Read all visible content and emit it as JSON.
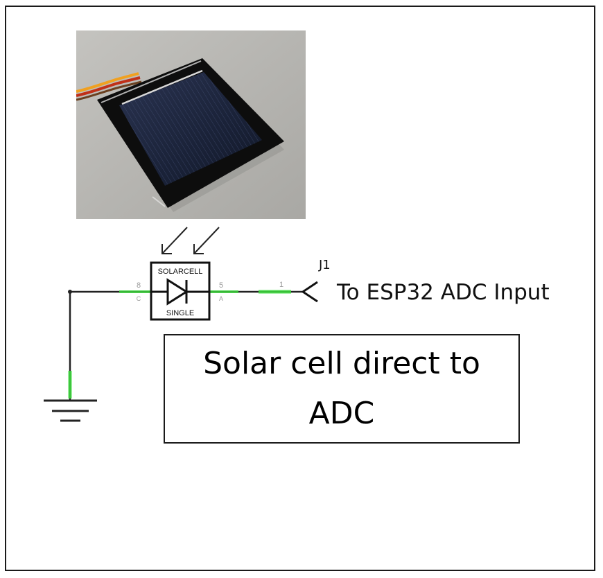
{
  "component": {
    "ref_label": "SOLARCELL",
    "value_label": "SINGLE",
    "pin_left_number": "8",
    "pin_left_name": "C",
    "pin_right_number": "5",
    "pin_right_name": "A"
  },
  "connector": {
    "ref_label": "J1",
    "pin_number": "1",
    "net_label": "To ESP32 ADC Input"
  },
  "caption": {
    "text": "Solar cell direct to ADC"
  },
  "colors": {
    "wire": "#222222",
    "net_highlight": "#3ddc3d",
    "panel_glass": "#1a2238",
    "panel_frame": "#0d0d0d",
    "photo_background": "#b9b8b4",
    "lead_orange": "#f0a020",
    "lead_red": "#c03018",
    "lead_brown": "#6a4020"
  },
  "icons": {
    "ground": "ground-symbol-icon",
    "diode": "diode-symbol-icon",
    "light": "incident-light-arrows-icon",
    "connector": "connector-chevron-icon"
  }
}
